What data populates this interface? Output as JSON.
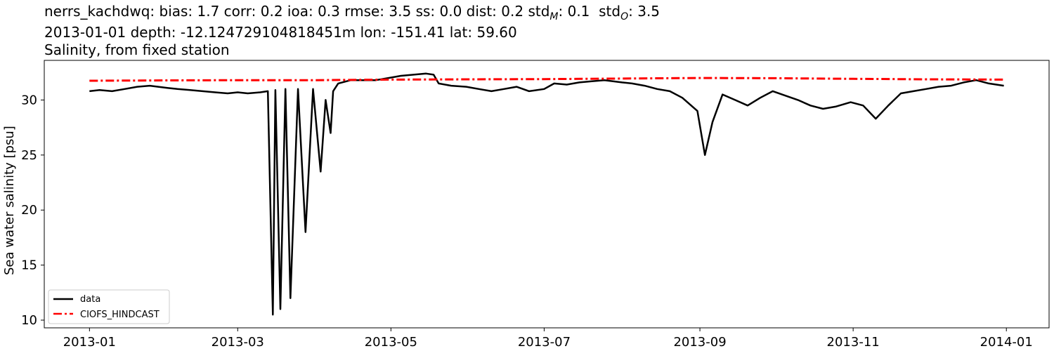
{
  "chart_data": {
    "type": "line",
    "title_lines": [
      "nerrs_kachdwq: bias: 1.7  corr: 0.2  ioa: 0.3  rmse: 3.5  ss: 0.0  dist: 0.2  std",
      "2013-01-01 depth: -12.124729104818451m lon: -151.41 lat: 59.60",
      "Salinity, from fixed station"
    ],
    "title_std_parts": [
      {
        "base": "std",
        "sub": "M",
        "value": ": 0.1"
      },
      {
        "base": "std",
        "sub": "O",
        "value": ": 3.5"
      }
    ],
    "xlabel": "",
    "ylabel": "Sea water salinity [psu]",
    "xlim": [
      "2012-12-14",
      "2014-01-18"
    ],
    "ylim": [
      9.3,
      33.6
    ],
    "x_ticks": [
      "2013-01",
      "2013-03",
      "2013-05",
      "2013-07",
      "2013-09",
      "2013-11",
      "2014-01"
    ],
    "y_ticks": [
      10,
      15,
      20,
      25,
      30
    ],
    "grid": false,
    "legend_position": "lower-left",
    "series": [
      {
        "name": "data",
        "color": "#000000",
        "style": "solid",
        "x": [
          "2013-01-01",
          "2013-01-05",
          "2013-01-10",
          "2013-01-15",
          "2013-01-20",
          "2013-01-25",
          "2013-02-01",
          "2013-02-05",
          "2013-02-10",
          "2013-02-15",
          "2013-02-20",
          "2013-02-25",
          "2013-03-01",
          "2013-03-05",
          "2013-03-10",
          "2013-03-13",
          "2013-03-15",
          "2013-03-16",
          "2013-03-18",
          "2013-03-20",
          "2013-03-22",
          "2013-03-25",
          "2013-03-28",
          "2013-03-31",
          "2013-04-03",
          "2013-04-05",
          "2013-04-07",
          "2013-04-08",
          "2013-04-10",
          "2013-04-15",
          "2013-04-20",
          "2013-04-25",
          "2013-04-30",
          "2013-05-05",
          "2013-05-10",
          "2013-05-15",
          "2013-05-18",
          "2013-05-20",
          "2013-05-25",
          "2013-05-31",
          "2013-06-05",
          "2013-06-10",
          "2013-06-15",
          "2013-06-20",
          "2013-06-25",
          "2013-07-01",
          "2013-07-05",
          "2013-07-10",
          "2013-07-15",
          "2013-07-20",
          "2013-07-25",
          "2013-08-01",
          "2013-08-05",
          "2013-08-10",
          "2013-08-15",
          "2013-08-20",
          "2013-08-25",
          "2013-08-31",
          "2013-09-03",
          "2013-09-06",
          "2013-09-10",
          "2013-09-15",
          "2013-09-20",
          "2013-09-25",
          "2013-09-30",
          "2013-10-05",
          "2013-10-10",
          "2013-10-15",
          "2013-10-20",
          "2013-10-25",
          "2013-10-31",
          "2013-11-05",
          "2013-11-10",
          "2013-11-15",
          "2013-11-20",
          "2013-11-25",
          "2013-11-30",
          "2013-12-05",
          "2013-12-10",
          "2013-12-15",
          "2013-12-20",
          "2013-12-25",
          "2013-12-31"
        ],
        "y": [
          30.8,
          30.9,
          30.8,
          31.0,
          31.2,
          31.3,
          31.1,
          31.0,
          30.9,
          30.8,
          30.7,
          30.6,
          30.7,
          30.6,
          30.7,
          30.8,
          10.5,
          30.9,
          11.0,
          31.0,
          12.0,
          31.0,
          18.0,
          31.0,
          23.5,
          30.0,
          27.0,
          30.8,
          31.5,
          31.8,
          31.8,
          31.8,
          32.0,
          32.2,
          32.3,
          32.4,
          32.3,
          31.5,
          31.3,
          31.2,
          31.0,
          30.8,
          31.0,
          31.2,
          30.8,
          31.0,
          31.5,
          31.4,
          31.6,
          31.7,
          31.8,
          31.6,
          31.5,
          31.3,
          31.0,
          30.8,
          30.2,
          29.0,
          25.0,
          28.0,
          30.5,
          30.0,
          29.5,
          30.2,
          30.8,
          30.4,
          30.0,
          29.5,
          29.2,
          29.4,
          29.8,
          29.5,
          28.3,
          29.5,
          30.6,
          30.8,
          31.0,
          31.2,
          31.3,
          31.6,
          31.8,
          31.5,
          31.3
        ]
      },
      {
        "name": "CIOFS_HINDCAST",
        "color": "#ff0000",
        "style": "dashdot",
        "x": [
          "2013-01-01",
          "2013-02-01",
          "2013-03-01",
          "2013-04-01",
          "2013-05-01",
          "2013-06-01",
          "2013-07-01",
          "2013-08-01",
          "2013-09-01",
          "2013-10-01",
          "2013-11-01",
          "2013-12-01",
          "2013-12-31"
        ],
        "y": [
          31.75,
          31.78,
          31.8,
          31.8,
          31.85,
          31.88,
          31.9,
          31.95,
          32.0,
          31.98,
          31.92,
          31.88,
          31.85
        ]
      }
    ]
  }
}
